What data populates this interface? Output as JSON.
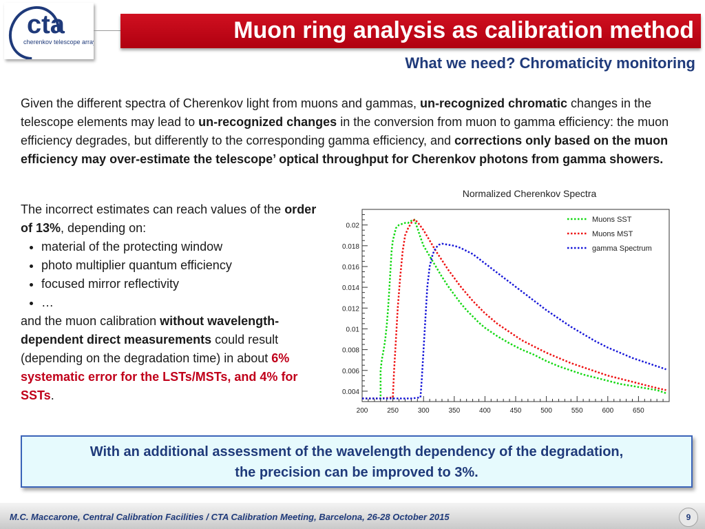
{
  "logo": {
    "name": "cta",
    "subtitle": "cherenkov telescope array",
    "brand_color": "#1f3a7a"
  },
  "header": {
    "title": "Muon ring analysis as calibration method",
    "subtitle": "What we need? Chromaticity monitoring",
    "bar_color": "#c00018"
  },
  "para1": {
    "t1": "Given the different spectra of Cherenkov light from muons and gammas, ",
    "b1": "un-recognized chromatic",
    "t2": " changes in the telescope elements may lead to ",
    "b2": "un-recognized changes",
    "t3": " in the conversion from muon to gamma efficiency: the muon efficiency  degrades, but differently to the corresponding gamma efficiency, and ",
    "b3": "corrections only based on the muon efficiency may over-estimate the telescope’ optical throughput for Cherenkov photons from gamma showers."
  },
  "left": {
    "t1": "The incorrect estimates can reach values of the ",
    "b1": "order of 13%",
    "t2": ", depending on:",
    "bullets": [
      "material of the protecting window",
      "photo multiplier quantum efficiency",
      "focused mirror reflectivity",
      "…"
    ],
    "t3": "and the muon calibration ",
    "b2": "without wavelength-dependent direct measurements",
    "t4": " could result (depending on the degradation time) in about ",
    "r1": "6% systematic error for the LSTs/MSTs, and 4% for SSTs",
    "t5": "."
  },
  "chart_data": {
    "type": "line",
    "title": "Normalized Cherenkov Spectra",
    "xlabel": "",
    "ylabel": "",
    "xlim": [
      200,
      700
    ],
    "ylim": [
      0.003,
      0.0215
    ],
    "x_ticks": [
      200,
      250,
      300,
      350,
      400,
      450,
      500,
      550,
      600,
      650
    ],
    "y_ticks": [
      0.004,
      0.006,
      0.008,
      0.01,
      0.012,
      0.014,
      0.016,
      0.018,
      0.02
    ],
    "y_tick_labels": [
      "0.004",
      "0.006",
      "0.008",
      "0.01",
      "0.012",
      "0.014",
      "0.016",
      "0.018",
      "0.02"
    ],
    "legend_position": "top-right",
    "series": [
      {
        "name": "Muons SST",
        "color": "#12d812",
        "x": [
          200,
          230,
          230,
          232,
          236,
          238,
          240,
          242,
          244,
          246,
          248,
          250,
          255,
          260,
          265,
          270,
          275,
          280,
          285,
          290,
          295,
          300,
          310,
          320,
          330,
          340,
          350,
          360,
          370,
          380,
          390,
          400,
          420,
          440,
          460,
          480,
          500,
          520,
          540,
          560,
          580,
          600,
          620,
          640,
          660,
          680,
          690,
          695
        ],
        "y": [
          0.0033,
          0.0033,
          0.006,
          0.007,
          0.0083,
          0.0092,
          0.0103,
          0.0118,
          0.0135,
          0.0155,
          0.0175,
          0.0185,
          0.0197,
          0.02,
          0.0201,
          0.0202,
          0.0202,
          0.0204,
          0.0205,
          0.0197,
          0.0188,
          0.018,
          0.017,
          0.016,
          0.015,
          0.0141,
          0.0133,
          0.0125,
          0.0118,
          0.0112,
          0.0106,
          0.0101,
          0.0093,
          0.0086,
          0.008,
          0.0075,
          0.0069,
          0.0064,
          0.006,
          0.0056,
          0.0053,
          0.005,
          0.0047,
          0.0045,
          0.0043,
          0.0041,
          0.0039,
          0.0038
        ]
      },
      {
        "name": "Muons MST",
        "color": "#ee1010",
        "x": [
          200,
          230,
          250,
          252,
          255,
          258,
          262,
          266,
          270,
          275,
          280,
          285,
          290,
          295,
          300,
          310,
          320,
          330,
          340,
          350,
          360,
          370,
          380,
          390,
          400,
          420,
          440,
          460,
          480,
          500,
          520,
          540,
          560,
          580,
          600,
          620,
          640,
          660,
          680,
          695
        ],
        "y": [
          0.0033,
          0.0033,
          0.0034,
          0.006,
          0.009,
          0.012,
          0.015,
          0.0175,
          0.019,
          0.0197,
          0.0202,
          0.0205,
          0.0203,
          0.0199,
          0.0195,
          0.0185,
          0.0175,
          0.0166,
          0.0157,
          0.0149,
          0.0141,
          0.0134,
          0.0127,
          0.0121,
          0.0115,
          0.0105,
          0.0097,
          0.0089,
          0.0083,
          0.0077,
          0.0072,
          0.0067,
          0.0063,
          0.0059,
          0.0055,
          0.0052,
          0.0049,
          0.0046,
          0.0043,
          0.0041
        ]
      },
      {
        "name": "gamma Spectrum",
        "color": "#1515d8",
        "x": [
          200,
          280,
          295,
          297,
          300,
          303,
          306,
          310,
          315,
          320,
          325,
          330,
          340,
          350,
          360,
          370,
          380,
          400,
          420,
          440,
          460,
          480,
          500,
          520,
          540,
          560,
          580,
          600,
          620,
          640,
          660,
          680,
          695
        ],
        "y": [
          0.0033,
          0.0033,
          0.0034,
          0.005,
          0.008,
          0.011,
          0.014,
          0.016,
          0.0172,
          0.0178,
          0.0181,
          0.0182,
          0.0181,
          0.018,
          0.0178,
          0.0175,
          0.0172,
          0.0163,
          0.0154,
          0.0145,
          0.0136,
          0.0127,
          0.0118,
          0.011,
          0.0102,
          0.0095,
          0.0088,
          0.0082,
          0.0077,
          0.0072,
          0.0068,
          0.0064,
          0.0061
        ]
      }
    ]
  },
  "callout": {
    "line1": "With an additional assessment of the wavelength dependency of the degradation,",
    "line2": "the precision can be improved to 3%."
  },
  "footer": {
    "text": "M.C. Maccarone, Central Calibration Facilities / CTA Calibration Meeting, Barcelona, 26-28 October 2015",
    "page": "9"
  }
}
